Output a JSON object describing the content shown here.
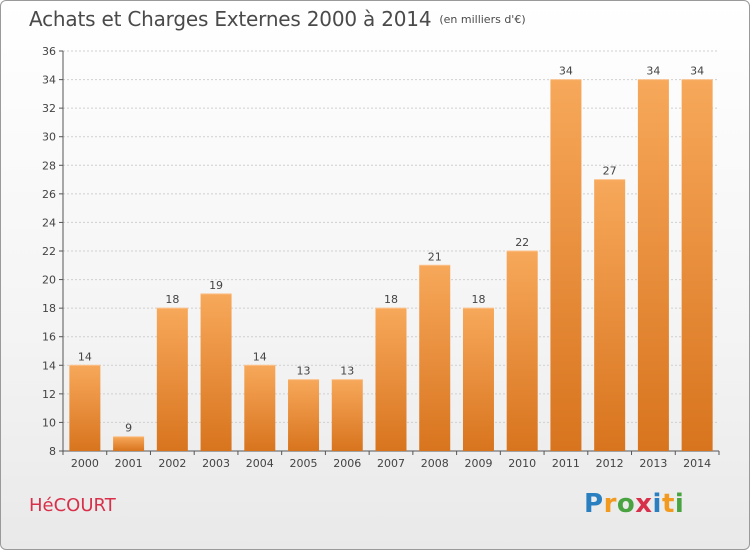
{
  "title": "Achats et Charges Externes 2000 à 2014",
  "subtitle": "(en milliers d'€)",
  "commune": "HéCOURT",
  "brand": {
    "letters": [
      "P",
      "r",
      "o",
      "x",
      "i",
      "t",
      "i"
    ],
    "colors": [
      "#2a7fc1",
      "#f29a1f",
      "#4aa341",
      "#d8304a",
      "#2a7fc1",
      "#f29a1f",
      "#4aa341"
    ]
  },
  "colors": {
    "bar_top": "#f7a85a",
    "bar_bottom": "#d8741e",
    "axis": "#555555",
    "grid": "#cfcfcf",
    "title": "#4a4a4a",
    "commune": "#d8304a"
  },
  "chart_data": {
    "type": "bar",
    "title": "Achats et Charges Externes 2000 à 2014",
    "subtitle": "(en milliers d'€)",
    "categories": [
      "2000",
      "2001",
      "2002",
      "2003",
      "2004",
      "2005",
      "2006",
      "2007",
      "2008",
      "2009",
      "2010",
      "2011",
      "2012",
      "2013",
      "2014"
    ],
    "values": [
      14,
      9,
      18,
      19,
      14,
      13,
      13,
      18,
      21,
      18,
      22,
      34,
      27,
      34,
      34
    ],
    "ylim": [
      8,
      36
    ],
    "yticks": [
      8,
      10,
      12,
      14,
      16,
      18,
      20,
      22,
      24,
      26,
      28,
      30,
      32,
      34,
      36
    ],
    "grid": true,
    "xlabel": "",
    "ylabel": ""
  }
}
